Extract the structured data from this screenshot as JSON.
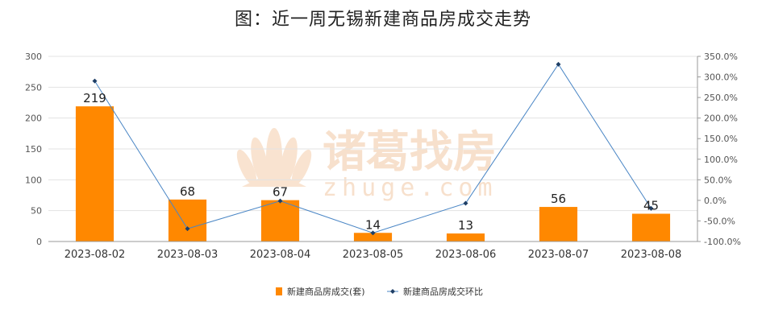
{
  "watermark": {
    "brand": "诸葛找房",
    "domain": "zhuge.com"
  },
  "chart_data": {
    "type": "bar",
    "title": "图：近一周无锡新建商品房成交走势",
    "categories": [
      "2023-08-02",
      "2023-08-03",
      "2023-08-04",
      "2023-08-05",
      "2023-08-06",
      "2023-08-07",
      "2023-08-08"
    ],
    "series": [
      {
        "name": "新建商品房成交(套)",
        "type": "bar",
        "axis": "left",
        "color": "#ff8800",
        "values": [
          219,
          68,
          67,
          14,
          13,
          56,
          45
        ]
      },
      {
        "name": "新建商品房成交环比",
        "type": "line",
        "axis": "right",
        "color": "#4a86c5",
        "values": [
          290.0,
          -69.0,
          -1.5,
          -79.1,
          -7.1,
          330.8,
          -19.6
        ]
      }
    ],
    "y_left": {
      "min": 0,
      "max": 300,
      "step": 50,
      "ticks": [
        "0",
        "50",
        "100",
        "150",
        "200",
        "250",
        "300"
      ]
    },
    "y_right": {
      "min": -100,
      "max": 350,
      "step": 50,
      "ticks": [
        "-100.0%",
        "-50.0%",
        "0.0%",
        "50.0%",
        "100.0%",
        "150.0%",
        "200.0%",
        "250.0%",
        "300.0%",
        "350.0%"
      ]
    },
    "xlabel": "",
    "ylabel": "",
    "grid": true,
    "legend_position": "bottom-center"
  }
}
